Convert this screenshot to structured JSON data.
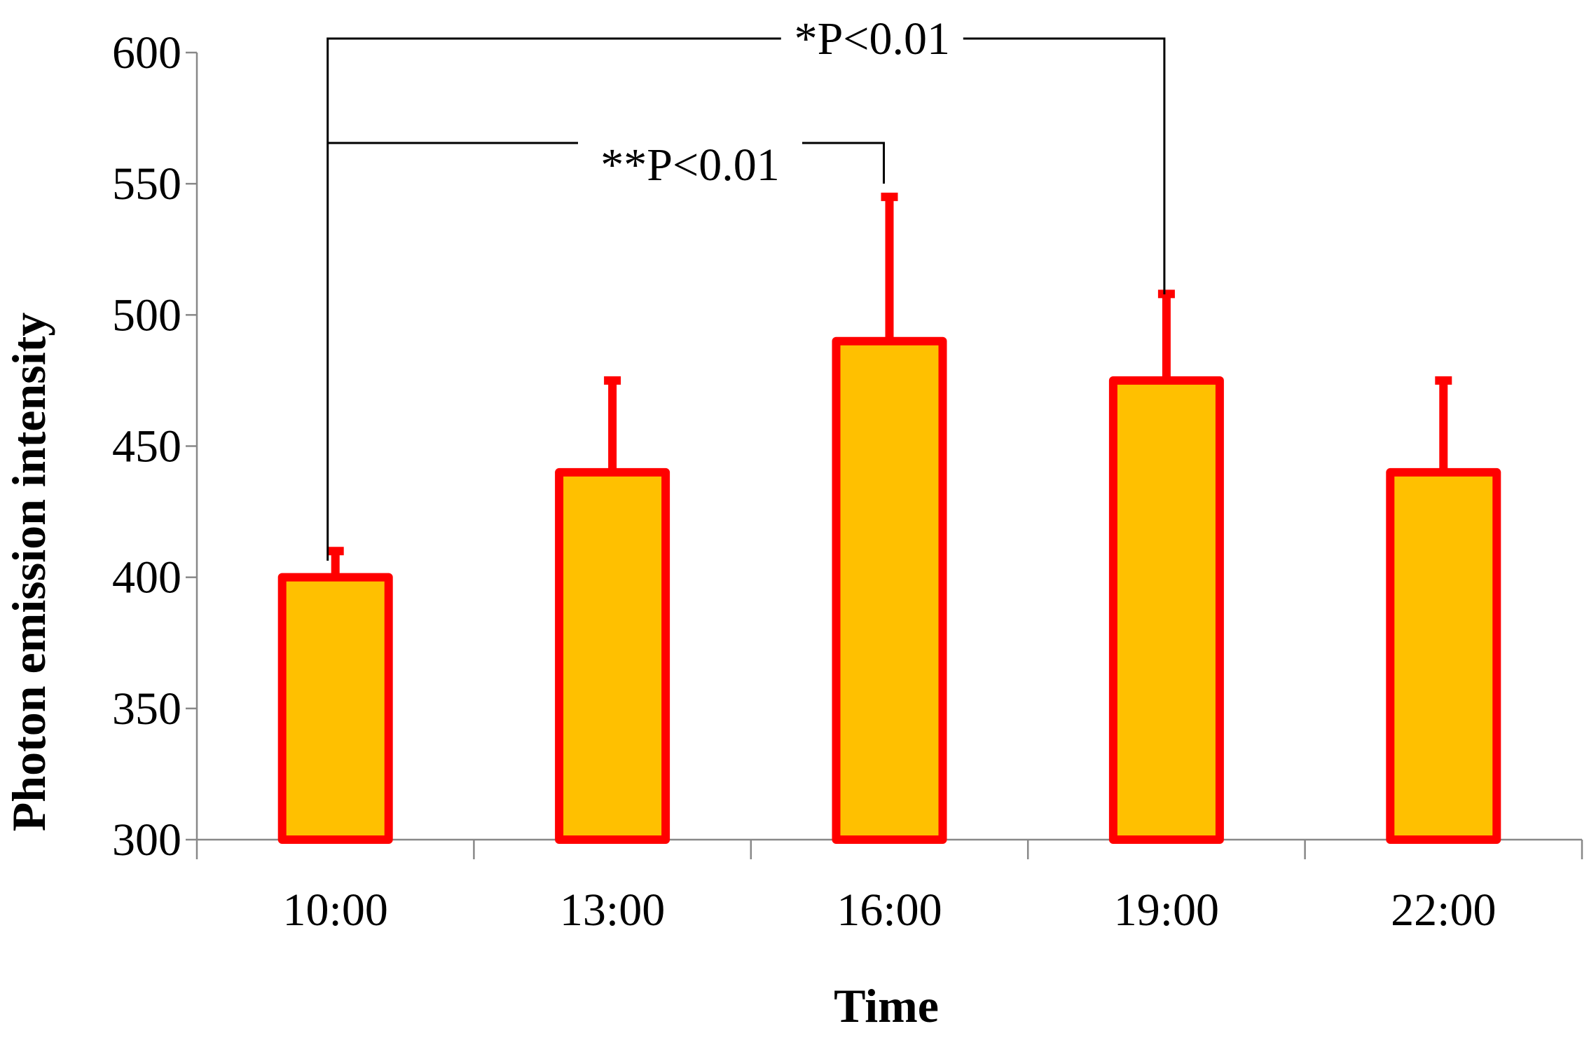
{
  "chart_data": {
    "type": "bar",
    "title": "",
    "xlabel": "Time",
    "ylabel": "Photon emission intensity",
    "categories": [
      "10:00",
      "13:00",
      "16:00",
      "19:00",
      "22:00"
    ],
    "values": [
      400,
      440,
      490,
      475,
      440
    ],
    "error_plus": [
      10,
      35,
      55,
      33,
      35
    ],
    "ylim": [
      300,
      600
    ],
    "yticks": [
      300,
      350,
      400,
      450,
      500,
      550,
      600
    ],
    "bar_fill": "#FFC000",
    "bar_edge": "#FF0000",
    "grid": false,
    "legend": "none",
    "annotations": [
      {
        "label": "*P<0.01",
        "from": "10:00",
        "to": "19:00"
      },
      {
        "label": "**P<0.01",
        "from": "10:00",
        "to": "16:00"
      }
    ]
  }
}
